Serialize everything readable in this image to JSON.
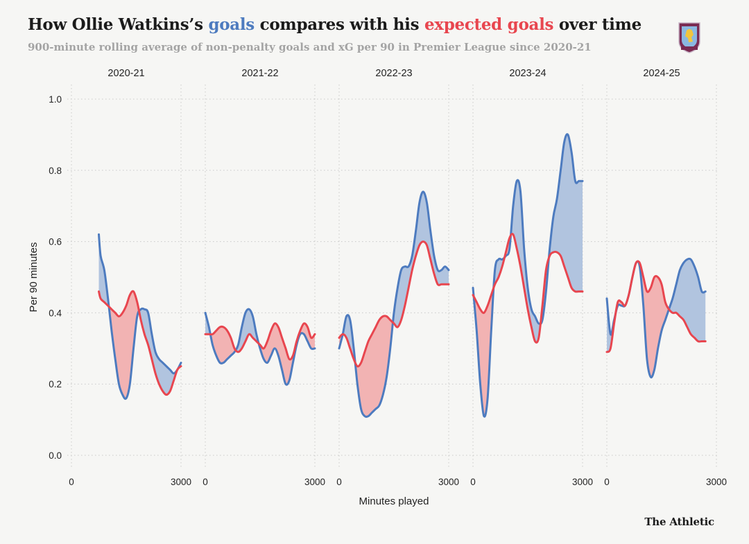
{
  "header": {
    "title_part1": "How Ollie Watkins’s ",
    "title_goals": "goals",
    "title_part2": " compares with his ",
    "title_xg": "expected goals",
    "title_part3": " over time",
    "subtitle": "900-minute rolling average of non-penalty goals and xG per 90 in Premier League since 2020-21",
    "crest_icon": "aston-villa-crest-icon"
  },
  "footer": {
    "brand": "The Athletic"
  },
  "colors": {
    "goals": "#4d7bbf",
    "xg": "#e8464f",
    "goals_fill": "#b1c4df",
    "xg_fill": "#f2b3b3",
    "grid": "#c9c9c9",
    "background": "#f6f6f4"
  },
  "chart_data": {
    "type": "line",
    "title": "How Ollie Watkins’s goals compares with his expected goals over time",
    "subtitle": "900-minute rolling average of non-penalty goals and xG per 90 in Premier League since 2020-21",
    "xlabel": "Minutes played",
    "ylabel": "Per 90 minutes",
    "xlim": [
      0,
      3000
    ],
    "ylim": [
      0,
      1.0
    ],
    "xticks": [
      0,
      3000
    ],
    "yticks": [
      0.0,
      0.2,
      0.4,
      0.6,
      0.8,
      1.0
    ],
    "ytick_labels": [
      "0.0",
      "0.2",
      "0.4",
      "0.6",
      "0.8",
      "1.0"
    ],
    "grid": true,
    "legend": "in-title",
    "panels": [
      {
        "season": "2020-21",
        "x": [
          750,
          800,
          900,
          1000,
          1100,
          1200,
          1300,
          1400,
          1500,
          1600,
          1700,
          1800,
          1900,
          2000,
          2100,
          2200,
          2300,
          2400,
          2500,
          2600,
          2700,
          2800,
          2900,
          3000
        ],
        "series": [
          {
            "name": "goals",
            "values": [
              0.62,
              0.56,
              0.52,
              0.44,
              0.35,
              0.27,
              0.2,
              0.17,
              0.16,
              0.2,
              0.3,
              0.39,
              0.41,
              0.41,
              0.4,
              0.34,
              0.29,
              0.27,
              0.26,
              0.25,
              0.24,
              0.23,
              0.24,
              0.26
            ]
          },
          {
            "name": "expected goals",
            "values": [
              0.46,
              0.44,
              0.43,
              0.42,
              0.41,
              0.4,
              0.39,
              0.4,
              0.42,
              0.45,
              0.46,
              0.43,
              0.38,
              0.34,
              0.31,
              0.27,
              0.23,
              0.2,
              0.18,
              0.17,
              0.18,
              0.21,
              0.24,
              0.25
            ]
          }
        ]
      },
      {
        "season": "2021-22",
        "x": [
          0,
          100,
          200,
          300,
          400,
          500,
          600,
          700,
          800,
          900,
          1000,
          1100,
          1200,
          1300,
          1400,
          1500,
          1600,
          1700,
          1800,
          1900,
          2000,
          2100,
          2200,
          2300,
          2400,
          2500,
          2600,
          2700,
          2800,
          2900,
          3000
        ],
        "series": [
          {
            "name": "goals",
            "values": [
              0.4,
              0.36,
              0.31,
              0.28,
              0.26,
              0.26,
              0.27,
              0.28,
              0.29,
              0.31,
              0.36,
              0.4,
              0.41,
              0.39,
              0.34,
              0.3,
              0.27,
              0.26,
              0.28,
              0.3,
              0.28,
              0.24,
              0.2,
              0.21,
              0.26,
              0.31,
              0.34,
              0.34,
              0.32,
              0.3,
              0.3
            ]
          },
          {
            "name": "expected goals",
            "values": [
              0.34,
              0.34,
              0.34,
              0.35,
              0.36,
              0.36,
              0.35,
              0.33,
              0.3,
              0.29,
              0.3,
              0.32,
              0.34,
              0.33,
              0.32,
              0.31,
              0.3,
              0.32,
              0.35,
              0.37,
              0.36,
              0.33,
              0.3,
              0.27,
              0.28,
              0.32,
              0.35,
              0.37,
              0.36,
              0.33,
              0.34
            ]
          }
        ]
      },
      {
        "season": "2022-23",
        "x": [
          0,
          100,
          200,
          300,
          400,
          500,
          600,
          700,
          800,
          900,
          1000,
          1100,
          1200,
          1300,
          1400,
          1500,
          1600,
          1700,
          1800,
          1900,
          2000,
          2100,
          2200,
          2300,
          2400,
          2500,
          2600,
          2700,
          2800,
          2900,
          3000
        ],
        "series": [
          {
            "name": "goals",
            "values": [
              0.3,
              0.34,
              0.39,
              0.38,
              0.3,
              0.2,
              0.13,
              0.11,
              0.11,
              0.12,
              0.13,
              0.14,
              0.17,
              0.22,
              0.3,
              0.4,
              0.47,
              0.52,
              0.53,
              0.53,
              0.56,
              0.63,
              0.71,
              0.74,
              0.71,
              0.63,
              0.56,
              0.52,
              0.52,
              0.53,
              0.52
            ]
          },
          {
            "name": "expected goals",
            "values": [
              0.33,
              0.34,
              0.33,
              0.3,
              0.27,
              0.25,
              0.26,
              0.29,
              0.32,
              0.34,
              0.36,
              0.38,
              0.39,
              0.39,
              0.38,
              0.37,
              0.36,
              0.38,
              0.42,
              0.47,
              0.52,
              0.56,
              0.59,
              0.6,
              0.59,
              0.55,
              0.51,
              0.48,
              0.48,
              0.48,
              0.48
            ]
          }
        ]
      },
      {
        "season": "2023-24",
        "x": [
          0,
          100,
          200,
          300,
          400,
          500,
          600,
          700,
          800,
          900,
          1000,
          1100,
          1200,
          1300,
          1400,
          1500,
          1600,
          1700,
          1800,
          1900,
          2000,
          2100,
          2200,
          2300,
          2400,
          2500,
          2600,
          2700,
          2800,
          2900,
          3000
        ],
        "series": [
          {
            "name": "goals",
            "values": [
              0.47,
              0.35,
              0.2,
              0.11,
              0.16,
              0.35,
              0.52,
              0.55,
              0.55,
              0.56,
              0.58,
              0.7,
              0.77,
              0.74,
              0.58,
              0.47,
              0.41,
              0.39,
              0.37,
              0.38,
              0.46,
              0.58,
              0.67,
              0.72,
              0.8,
              0.88,
              0.9,
              0.85,
              0.77,
              0.77,
              0.77
            ]
          },
          {
            "name": "expected goals",
            "values": [
              0.45,
              0.43,
              0.41,
              0.4,
              0.42,
              0.45,
              0.48,
              0.5,
              0.53,
              0.57,
              0.61,
              0.62,
              0.58,
              0.53,
              0.47,
              0.41,
              0.36,
              0.32,
              0.33,
              0.42,
              0.52,
              0.56,
              0.57,
              0.57,
              0.56,
              0.53,
              0.5,
              0.47,
              0.46,
              0.46,
              0.46
            ]
          }
        ]
      },
      {
        "season": "2024-25",
        "x": [
          0,
          100,
          200,
          300,
          400,
          500,
          600,
          700,
          800,
          900,
          1000,
          1100,
          1200,
          1300,
          1400,
          1500,
          1600,
          1700,
          1800,
          1900,
          2000,
          2100,
          2200,
          2300,
          2400,
          2500,
          2600,
          2700
        ],
        "series": [
          {
            "name": "goals",
            "values": [
              0.44,
              0.34,
              0.38,
              0.42,
              0.42,
              0.42,
              0.45,
              0.5,
              0.54,
              0.53,
              0.42,
              0.27,
              0.22,
              0.24,
              0.3,
              0.35,
              0.38,
              0.41,
              0.44,
              0.48,
              0.52,
              0.54,
              0.55,
              0.55,
              0.53,
              0.5,
              0.46,
              0.46
            ]
          },
          {
            "name": "expected goals",
            "values": [
              0.29,
              0.3,
              0.37,
              0.43,
              0.43,
              0.42,
              0.45,
              0.5,
              0.54,
              0.54,
              0.5,
              0.46,
              0.47,
              0.5,
              0.5,
              0.48,
              0.43,
              0.41,
              0.4,
              0.4,
              0.39,
              0.38,
              0.36,
              0.34,
              0.33,
              0.32,
              0.32,
              0.32
            ]
          }
        ]
      }
    ]
  }
}
